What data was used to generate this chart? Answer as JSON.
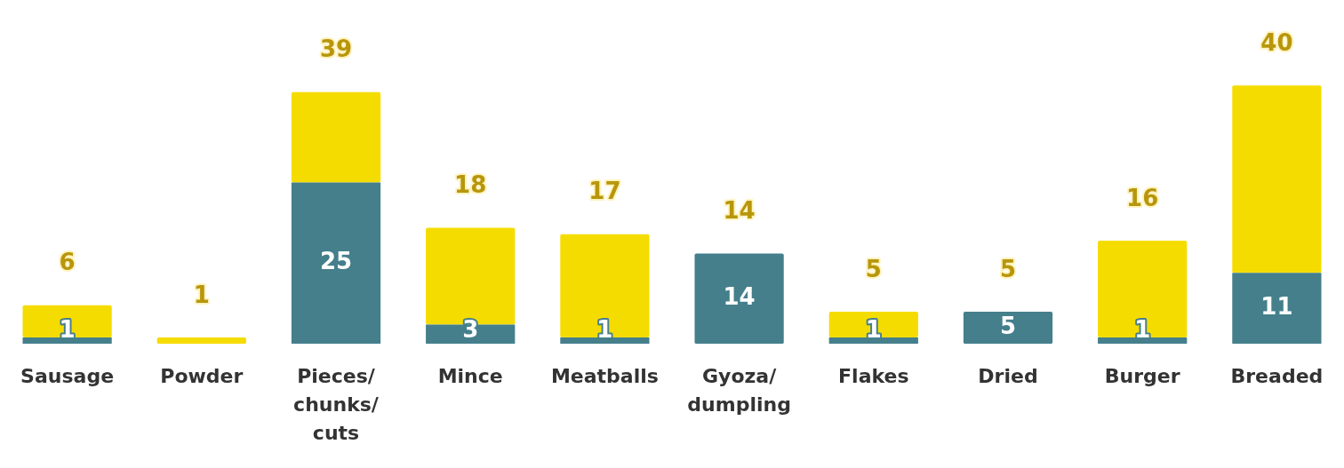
{
  "chart_data": {
    "type": "bar",
    "stacked": true,
    "categories": [
      "Sausage",
      "Powder",
      "Pieces/\nchunks/\ncuts",
      "Mince",
      "Meatballs",
      "Gyoza/\ndumpling",
      "Flakes",
      "Dried",
      "Burger",
      "Breaded"
    ],
    "series": [
      {
        "color": "#457f8c",
        "values": [
          1,
          0,
          25,
          3,
          1,
          14,
          1,
          5,
          1,
          11
        ],
        "value_labels": [
          "1",
          null,
          "25",
          "3",
          "1",
          "14",
          "1",
          "5",
          "1",
          "11"
        ]
      },
      {
        "color": "#f5dc00",
        "values": [
          5,
          1,
          14,
          15,
          16,
          0,
          4,
          0,
          15,
          29
        ]
      }
    ],
    "totals": [
      "6",
      "1",
      "39",
      "18",
      "17",
      "14",
      "5",
      "5",
      "16",
      "40"
    ],
    "grid": false,
    "legend": false
  }
}
